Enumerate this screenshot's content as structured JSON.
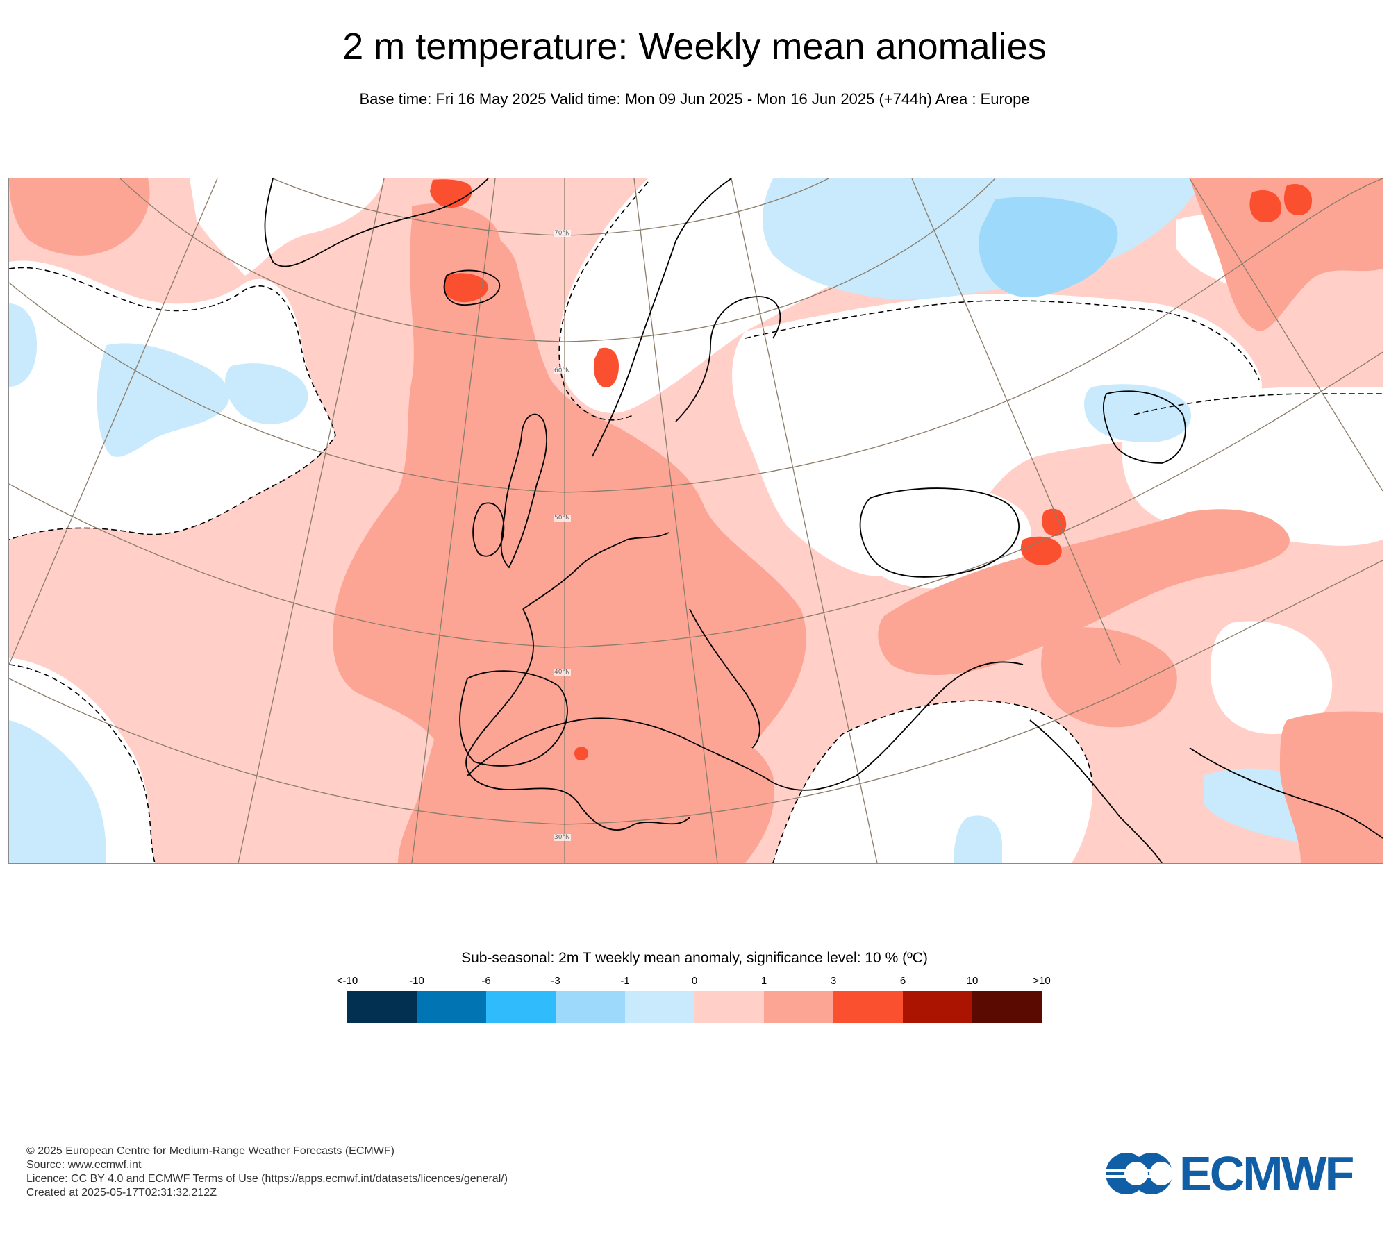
{
  "header": {
    "title": "2 m temperature: Weekly mean anomalies",
    "subtitle": "Base time: Fri 16 May 2025 Valid time: Mon 09 Jun 2025 - Mon 16 Jun 2025 (+744h) Area : Europe"
  },
  "map": {
    "area": "Europe",
    "latitude_labels": [
      "70°N",
      "60°N",
      "50°N",
      "40°N",
      "30°N"
    ],
    "colors": {
      "neutral": "#ffffff",
      "warm_1_3": "#ffcfc8",
      "warm_3_6": "#fca595",
      "warm_6_10": "#fb5030",
      "cool_0_1": "#c8eafc",
      "cool_1_3": "#9dd9fb",
      "coast": "#000000",
      "graticule": "#8b7d6b"
    }
  },
  "legend": {
    "title": "Sub-seasonal: 2m T weekly mean anomaly, significance level: 10 % (ºC)",
    "ticks": [
      "<-10",
      "-10",
      "-6",
      "-3",
      "-1",
      "0",
      "1",
      "3",
      "6",
      "10",
      ">10"
    ],
    "swatches": [
      "#023050",
      "#0175b4",
      "#2fbbfc",
      "#9dd9fb",
      "#c8eafc",
      "#ffcfc8",
      "#fca595",
      "#fb5030",
      "#ab1400",
      "#5a0a00"
    ]
  },
  "footer": {
    "copyright": "© 2025 European Centre for Medium-Range Weather Forecasts (ECMWF)",
    "source": "Source: www.ecmwf.int",
    "licence": "Licence: CC BY 4.0 and ECMWF Terms of Use (https://apps.ecmwf.int/datasets/licences/general/)",
    "created": "Created at 2025-05-17T02:31:32.212Z"
  },
  "logo": {
    "text": "ECMWF",
    "color": "#0f5ea6"
  }
}
